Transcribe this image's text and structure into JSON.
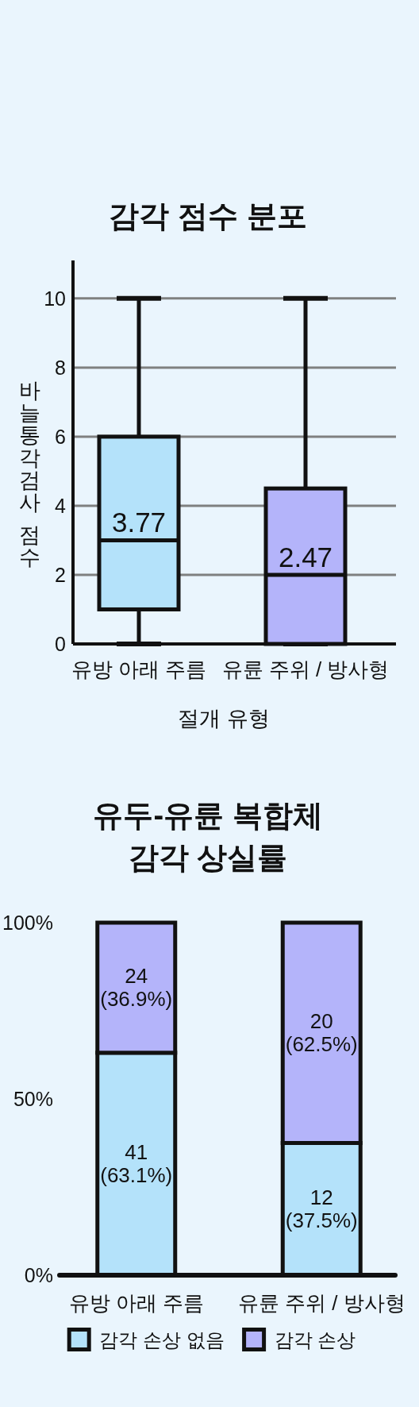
{
  "chart_data": [
    {
      "type": "box",
      "title": "감각 점수 분포",
      "xlabel": "절개 유형",
      "ylabel": "바늘통각검사 점수",
      "categories": [
        "유방 아래 주름",
        "유륜 주위 / 방사형"
      ],
      "boxes": [
        {
          "low": 0,
          "q1": 1,
          "median": 3,
          "q3": 6,
          "high": 10
        },
        {
          "low": 0,
          "q1": 0,
          "median": 2,
          "q3": 4.5,
          "high": 10
        }
      ],
      "colors": [
        "#b4e2fa",
        "#b4b4fa"
      ],
      "ylim": [
        0,
        11.1
      ],
      "yticks": [
        0,
        2,
        4,
        6,
        8,
        10
      ],
      "grid": "y",
      "annotations": [
        "3.77",
        "2.47"
      ]
    },
    {
      "type": "bar",
      "title": "유두-유륜 복합체\n감각 상실률",
      "categories": [
        "유방 아래 주름",
        "유륜 주위 / 방사형"
      ],
      "stacked": true,
      "series": [
        {
          "name": "감각 손상 없음",
          "color": "#b4e2fa",
          "values": [
            63.1,
            37.5
          ],
          "value_labels": [
            "41\n(63.1%)",
            "12\n(37.5%)"
          ]
        },
        {
          "name": "감각 손상",
          "color": "#b4b4fa",
          "values": [
            36.9,
            62.5
          ],
          "value_labels": [
            "24\n(36.9%)",
            "20\n(62.5%)"
          ]
        }
      ],
      "ylim": [
        0,
        100
      ],
      "yticks": [
        {
          "value": 0,
          "label": "0%"
        },
        {
          "value": 50,
          "label": "50%"
        },
        {
          "value": 100,
          "label": "100%"
        }
      ],
      "legend": "bottom"
    }
  ]
}
